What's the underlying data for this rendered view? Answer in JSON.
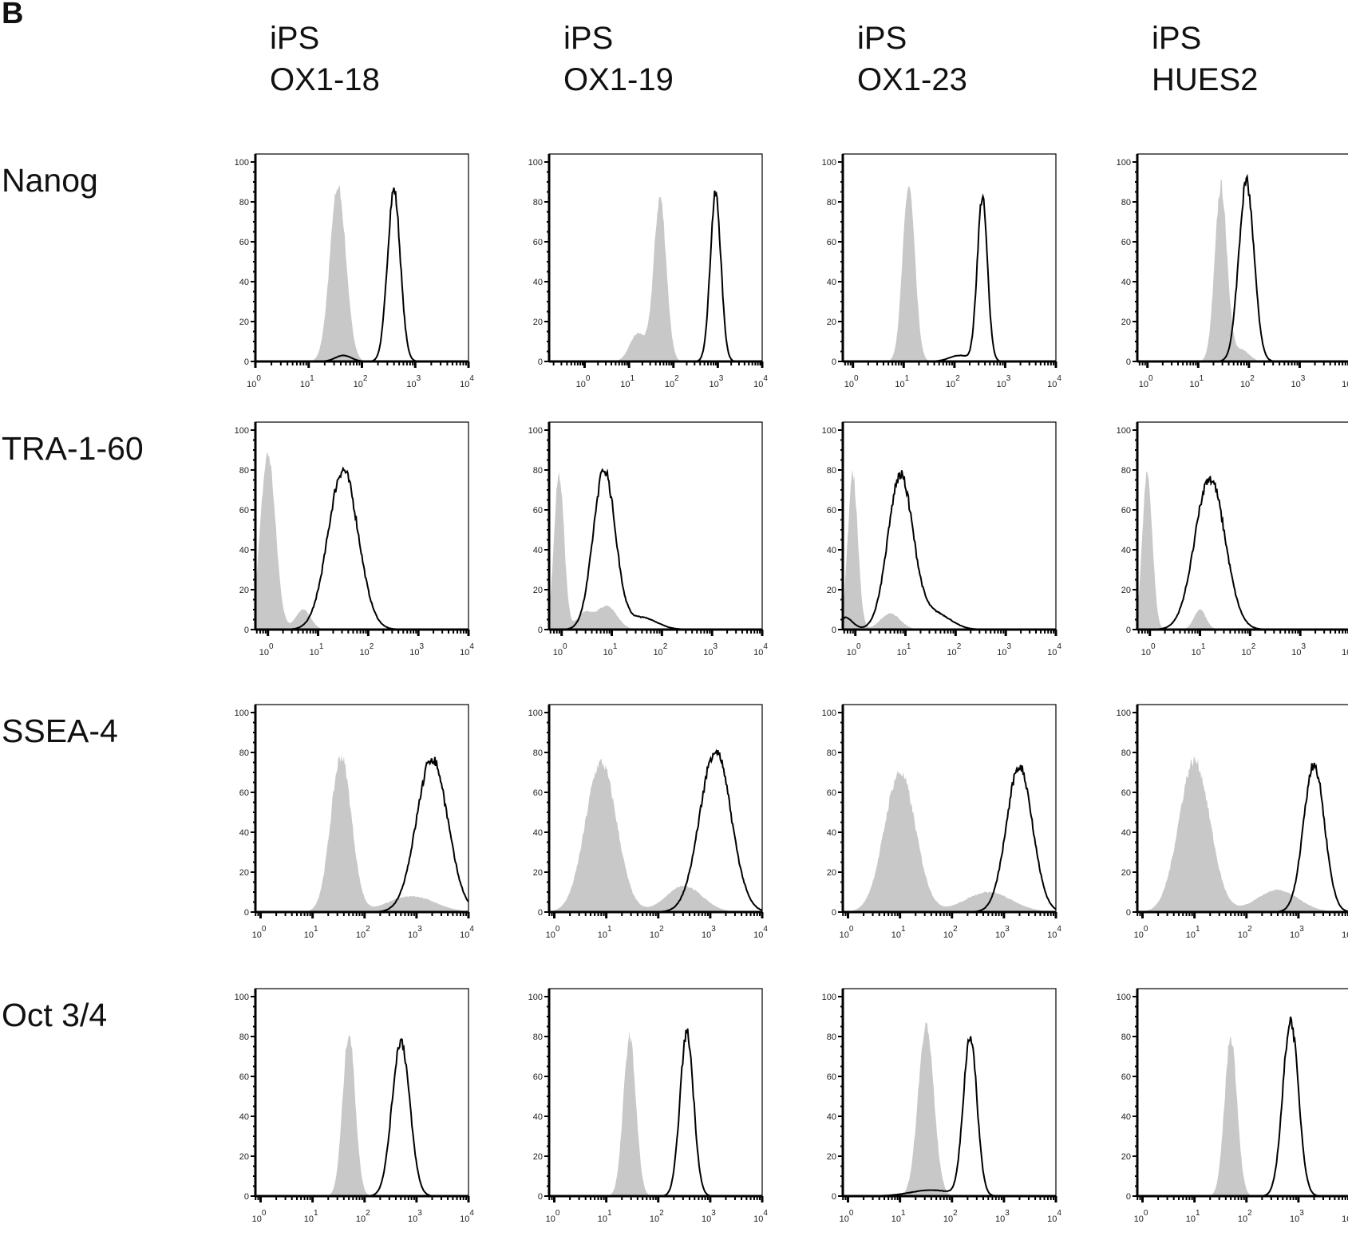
{
  "panel_label": "B",
  "columns": [
    {
      "line1": "iPS",
      "line2": "OX1-18"
    },
    {
      "line1": "iPS",
      "line2": "OX1-19"
    },
    {
      "line1": "iPS",
      "line2": "OX1-23"
    },
    {
      "line1": "iPS",
      "line2": "HUES2"
    }
  ],
  "rows": [
    "Nanog",
    "TRA-1-60",
    "SSEA-4",
    "Oct 3/4"
  ],
  "colors": {
    "isotype_fill": "#c8c8c8",
    "stained_line": "#000000"
  },
  "chart_data": {
    "type": "area",
    "description_of_series": "filled grey histogram and black outline histogram per panel",
    "y_ticks": [
      0,
      20,
      40,
      60,
      80,
      100
    ],
    "ylim": [
      0,
      100
    ],
    "x_scale": "log",
    "x_tick_labels": [
      {
        "base": "10",
        "exp": "0",
        "value": 0
      },
      {
        "base": "10",
        "exp": "1",
        "value": 1
      },
      {
        "base": "10",
        "exp": "2",
        "value": 2
      },
      {
        "base": "10",
        "exp": "3",
        "value": 3
      },
      {
        "base": "10",
        "exp": "4",
        "value": 4
      }
    ],
    "grid": false,
    "panels": [
      [
        {
          "xlim_log10": [
            0,
            4
          ],
          "grey_peaks": [
            [
              1.55,
              88,
              0.15
            ]
          ],
          "black_peaks": [
            [
              2.6,
              86,
              0.12
            ],
            [
              1.65,
              3,
              0.15
            ]
          ]
        },
        {
          "xlim_log10": [
            -0.8,
            4
          ],
          "grey_peaks": [
            [
              1.7,
              82,
              0.14
            ],
            [
              1.2,
              14,
              0.18
            ]
          ],
          "black_peaks": [
            [
              2.95,
              84,
              0.12
            ]
          ]
        },
        {
          "xlim_log10": [
            -0.2,
            4
          ],
          "grey_peaks": [
            [
              1.1,
              88,
              0.12
            ]
          ],
          "black_peaks": [
            [
              2.55,
              82,
              0.1
            ],
            [
              2.1,
              3,
              0.2
            ]
          ]
        },
        {
          "xlim_log10": [
            -0.2,
            4
          ],
          "grey_peaks": [
            [
              1.45,
              88,
              0.12
            ],
            [
              1.85,
              6,
              0.15
            ]
          ],
          "black_peaks": [
            [
              1.95,
              90,
              0.15
            ]
          ]
        }
      ],
      [
        {
          "xlim_log10": [
            -0.25,
            4
          ],
          "grey_peaks": [
            [
              0.0,
              88,
              0.15
            ],
            [
              0.7,
              10,
              0.15
            ]
          ],
          "black_peaks": [
            [
              1.5,
              80,
              0.3
            ]
          ]
        },
        {
          "xlim_log10": [
            -0.25,
            4
          ],
          "grey_peaks": [
            [
              -0.05,
              78,
              0.1
            ],
            [
              0.9,
              12,
              0.2
            ],
            [
              0.45,
              8,
              0.15
            ]
          ],
          "black_peaks": [
            [
              0.85,
              80,
              0.22
            ],
            [
              1.6,
              6,
              0.3
            ]
          ]
        },
        {
          "xlim_log10": [
            -0.25,
            4
          ],
          "grey_peaks": [
            [
              -0.05,
              78,
              0.1
            ],
            [
              0.7,
              8,
              0.2
            ]
          ],
          "black_peaks": [
            [
              0.9,
              77,
              0.25
            ],
            [
              -0.2,
              6,
              0.15
            ],
            [
              1.6,
              8,
              0.3
            ]
          ]
        },
        {
          "xlim_log10": [
            -0.25,
            4
          ],
          "grey_peaks": [
            [
              -0.05,
              78,
              0.1
            ],
            [
              1.0,
              10,
              0.12
            ]
          ],
          "black_peaks": [
            [
              1.2,
              76,
              0.3
            ]
          ]
        }
      ],
      [
        {
          "xlim_log10": [
            -0.1,
            4
          ],
          "grey_peaks": [
            [
              1.55,
              78,
              0.2
            ],
            [
              2.9,
              8,
              0.45
            ]
          ],
          "black_peaks": [
            [
              3.3,
              77,
              0.3
            ]
          ]
        },
        {
          "xlim_log10": [
            -0.1,
            4
          ],
          "grey_peaks": [
            [
              0.9,
              75,
              0.3
            ],
            [
              2.5,
              13,
              0.35
            ]
          ],
          "black_peaks": [
            [
              3.1,
              81,
              0.3
            ]
          ]
        },
        {
          "xlim_log10": [
            -0.1,
            4
          ],
          "grey_peaks": [
            [
              1.0,
              70,
              0.3
            ],
            [
              2.7,
              10,
              0.45
            ]
          ],
          "black_peaks": [
            [
              3.3,
              73,
              0.25
            ]
          ]
        },
        {
          "xlim_log10": [
            -0.1,
            4
          ],
          "grey_peaks": [
            [
              1.0,
              76,
              0.3
            ],
            [
              2.6,
              11,
              0.4
            ]
          ],
          "black_peaks": [
            [
              3.3,
              74,
              0.2
            ]
          ]
        }
      ],
      [
        {
          "xlim_log10": [
            -0.1,
            4
          ],
          "grey_peaks": [
            [
              1.7,
              82,
              0.12
            ]
          ],
          "black_peaks": [
            [
              2.7,
              78,
              0.17
            ]
          ]
        },
        {
          "xlim_log10": [
            -0.1,
            4
          ],
          "grey_peaks": [
            [
              1.45,
              80,
              0.12
            ]
          ],
          "black_peaks": [
            [
              2.55,
              82,
              0.13
            ]
          ]
        },
        {
          "xlim_log10": [
            -0.1,
            4
          ],
          "grey_peaks": [
            [
              1.5,
              86,
              0.15
            ]
          ],
          "black_peaks": [
            [
              2.35,
              80,
              0.13
            ],
            [
              1.6,
              3,
              0.4
            ]
          ]
        },
        {
          "xlim_log10": [
            -0.1,
            4
          ],
          "grey_peaks": [
            [
              1.7,
              80,
              0.12
            ]
          ],
          "black_peaks": [
            [
              2.85,
              88,
              0.15
            ]
          ]
        }
      ]
    ]
  }
}
